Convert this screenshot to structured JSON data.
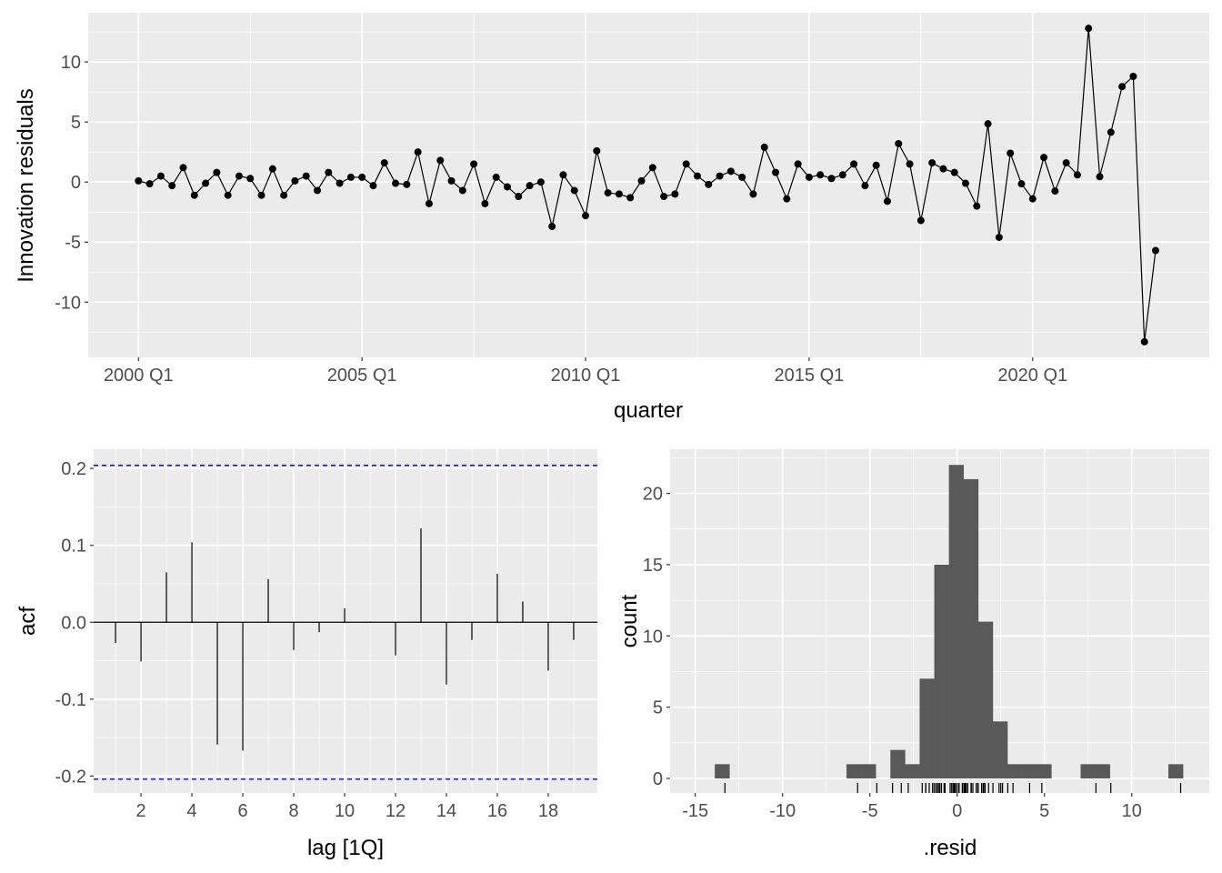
{
  "chart_data": [
    {
      "type": "line",
      "title": "",
      "xlabel": "quarter",
      "ylabel": "Innovation residuals",
      "x_start": "2000 Q1",
      "x_ticks": [
        {
          "index": 0,
          "label": "2000 Q1"
        },
        {
          "index": 20,
          "label": "2005 Q1"
        },
        {
          "index": 40,
          "label": "2010 Q1"
        },
        {
          "index": 60,
          "label": "2015 Q1"
        },
        {
          "index": 80,
          "label": "2020 Q1"
        }
      ],
      "y_ticks": [
        {
          "value": -10,
          "label": "-10"
        },
        {
          "value": -5,
          "label": "-5"
        },
        {
          "value": 0,
          "label": "0"
        },
        {
          "value": 5,
          "label": "5"
        },
        {
          "value": 10,
          "label": "10"
        }
      ],
      "xlim": [
        -4.5,
        95.8
      ],
      "ylim": [
        -14.6,
        14.1
      ],
      "grid": true,
      "values": [
        0.1,
        -0.15,
        0.5,
        -0.3,
        1.2,
        -1.1,
        -0.1,
        0.8,
        -1.1,
        0.5,
        0.3,
        -1.1,
        1.1,
        -1.1,
        0.1,
        0.5,
        -0.7,
        0.8,
        -0.1,
        0.4,
        0.4,
        -0.3,
        1.6,
        -0.1,
        -0.2,
        2.5,
        -1.8,
        1.8,
        0.1,
        -0.7,
        1.5,
        -1.8,
        0.4,
        -0.4,
        -1.2,
        -0.3,
        0.0,
        -3.7,
        0.6,
        -0.7,
        -2.8,
        2.6,
        -0.9,
        -1.0,
        -1.3,
        0.1,
        1.2,
        -1.2,
        -1.0,
        1.5,
        0.5,
        -0.2,
        0.5,
        0.9,
        0.4,
        -1.0,
        2.9,
        0.8,
        -1.4,
        1.5,
        0.4,
        0.6,
        0.3,
        0.6,
        1.5,
        -0.3,
        1.4,
        -1.6,
        3.2,
        1.5,
        -3.2,
        1.6,
        1.1,
        0.8,
        -0.1,
        -2.0,
        4.85,
        -4.6,
        2.4,
        -0.15,
        -1.4,
        2.05,
        -0.75,
        1.6,
        0.6,
        12.8,
        0.45,
        4.15,
        7.95,
        8.8,
        -13.3,
        -5.7
      ]
    },
    {
      "type": "bar",
      "title": "",
      "xlabel": "lag [1Q]",
      "ylabel": "acf",
      "lags": [
        1,
        2,
        3,
        4,
        5,
        6,
        7,
        8,
        9,
        10,
        11,
        12,
        13,
        14,
        15,
        16,
        17,
        18,
        19
      ],
      "values": [
        -0.027,
        -0.051,
        0.065,
        0.104,
        -0.159,
        -0.167,
        0.056,
        -0.036,
        -0.013,
        0.018,
        0.001,
        -0.043,
        0.122,
        -0.081,
        -0.023,
        0.063,
        0.027,
        -0.063,
        -0.023
      ],
      "confidence_bound": 0.204,
      "confidence_color": "#0000ff",
      "x_ticks": [
        {
          "value": 2,
          "label": "2"
        },
        {
          "value": 4,
          "label": "4"
        },
        {
          "value": 6,
          "label": "6"
        },
        {
          "value": 8,
          "label": "8"
        },
        {
          "value": 10,
          "label": "10"
        },
        {
          "value": 12,
          "label": "12"
        },
        {
          "value": 14,
          "label": "14"
        },
        {
          "value": 16,
          "label": "16"
        },
        {
          "value": 18,
          "label": "18"
        }
      ],
      "y_ticks": [
        {
          "value": -0.2,
          "label": "-0.2"
        },
        {
          "value": -0.1,
          "label": "-0.1"
        },
        {
          "value": 0,
          "label": "0.0"
        },
        {
          "value": 0.1,
          "label": "0.1"
        },
        {
          "value": 0.2,
          "label": "0.2"
        }
      ],
      "xlim": [
        0.14,
        19.93
      ],
      "ylim": [
        -0.222,
        0.225
      ],
      "grid": true
    },
    {
      "type": "histogram",
      "title": "",
      "xlabel": ".resid",
      "ylabel": "count",
      "bin_start": -13.88,
      "bin_width": 0.838,
      "counts": [
        1,
        0,
        0,
        0,
        0,
        0,
        0,
        0,
        0,
        1,
        1,
        0,
        2,
        1,
        7,
        15,
        22,
        21,
        11,
        4,
        1,
        1,
        1,
        0,
        0,
        1,
        1,
        0,
        0,
        0,
        0,
        1
      ],
      "bar_color": "#595959",
      "rug": true,
      "x_ticks": [
        {
          "value": -15,
          "label": "-15"
        },
        {
          "value": -10,
          "label": "-10"
        },
        {
          "value": -5,
          "label": "-5"
        },
        {
          "value": 0,
          "label": "0"
        },
        {
          "value": 5,
          "label": "5"
        },
        {
          "value": 10,
          "label": "10"
        }
      ],
      "y_ticks": [
        {
          "value": 0,
          "label": "0"
        },
        {
          "value": 5,
          "label": "5"
        },
        {
          "value": 10,
          "label": "10"
        },
        {
          "value": 15,
          "label": "15"
        },
        {
          "value": 20,
          "label": "20"
        }
      ],
      "xlim": [
        -16.44,
        14.44
      ],
      "ylim": [
        -1.02,
        23.1
      ],
      "grid": true
    }
  ]
}
